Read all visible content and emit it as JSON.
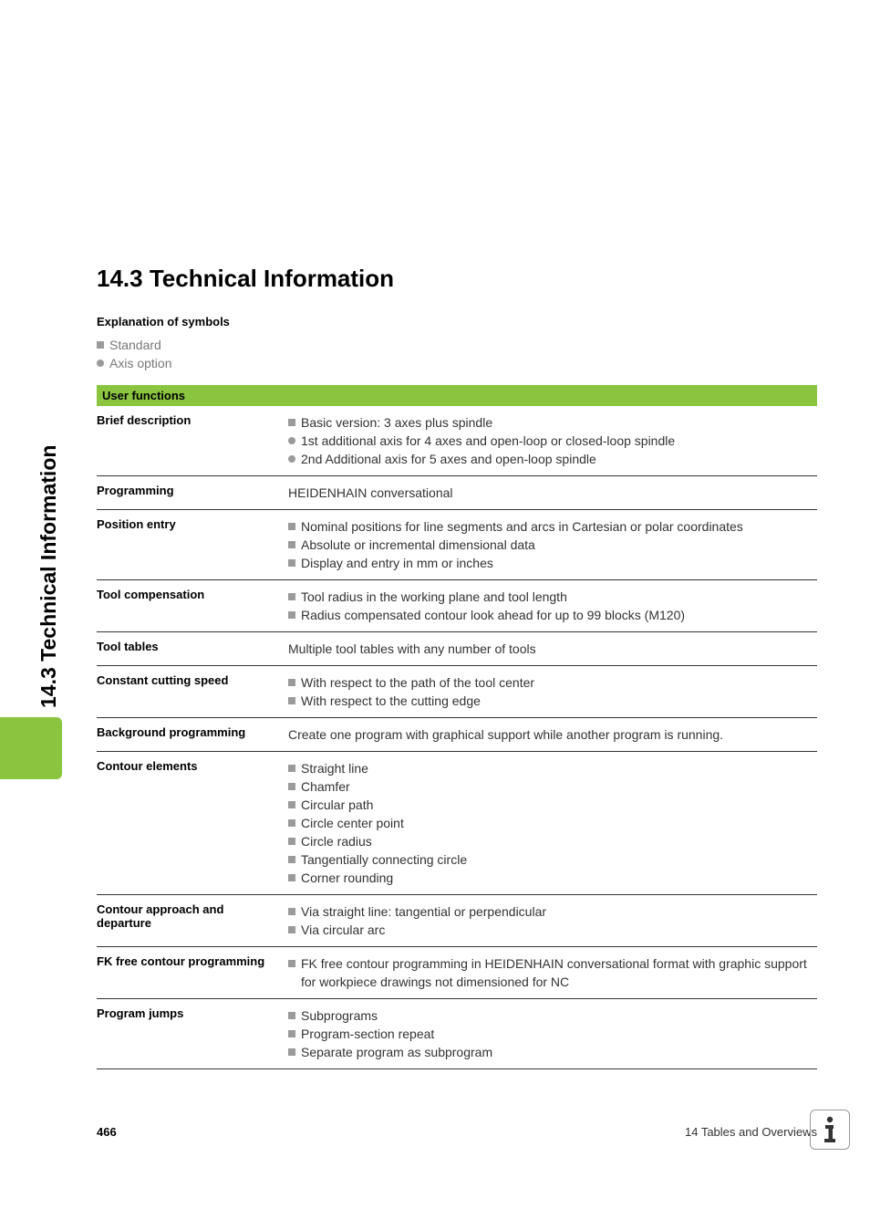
{
  "colors": {
    "accent_green": "#8bc53f",
    "text_primary": "#000000",
    "text_body": "#333333",
    "text_muted": "#777777",
    "border": "#333333",
    "bullet_gray": "#9a9a9a",
    "background": "#ffffff"
  },
  "side_tab": {
    "label": "14.3 Technical Information"
  },
  "section": {
    "title": "14.3 Technical Information",
    "explanation_heading": "Explanation of symbols",
    "symbols": [
      {
        "marker": "square",
        "label": "Standard",
        "color": "#9a9a9a"
      },
      {
        "marker": "circle",
        "label": "Axis option",
        "color": "#9a9a9a"
      }
    ]
  },
  "table": {
    "header": "User functions",
    "rows": [
      {
        "label": "Brief description",
        "items": [
          {
            "marker": "square",
            "color": "#9a9a9a",
            "text": "Basic version: 3 axes plus spindle"
          },
          {
            "marker": "circle",
            "color": "#9a9a9a",
            "text": "1st additional axis for 4 axes and open-loop or closed-loop spindle"
          },
          {
            "marker": "circle",
            "color": "#9a9a9a",
            "text": "2nd Additional axis for 5 axes and open-loop spindle"
          }
        ]
      },
      {
        "label": "Programming",
        "plain": "HEIDENHAIN conversational"
      },
      {
        "label": "Position entry",
        "items": [
          {
            "marker": "square",
            "color": "#9a9a9a",
            "text": "Nominal positions for line segments and arcs in Cartesian or polar coordinates"
          },
          {
            "marker": "square",
            "color": "#9a9a9a",
            "text": "Absolute or incremental dimensional data"
          },
          {
            "marker": "square",
            "color": "#9a9a9a",
            "text": "Display and entry in mm or inches"
          }
        ]
      },
      {
        "label": "Tool compensation",
        "items": [
          {
            "marker": "square",
            "color": "#9a9a9a",
            "text": "Tool radius in the working plane and tool length"
          },
          {
            "marker": "square",
            "color": "#9a9a9a",
            "text": "Radius compensated contour look ahead for up to 99 blocks (M120)"
          }
        ]
      },
      {
        "label": "Tool tables",
        "plain": "Multiple tool tables with any number of tools"
      },
      {
        "label": "Constant cutting speed",
        "items": [
          {
            "marker": "square",
            "color": "#9a9a9a",
            "text": "With respect to the path of the tool center"
          },
          {
            "marker": "square",
            "color": "#9a9a9a",
            "text": "With respect to the cutting edge"
          }
        ]
      },
      {
        "label": "Background programming",
        "plain": "Create one program with graphical support while another program is running."
      },
      {
        "label": "Contour elements",
        "items": [
          {
            "marker": "square",
            "color": "#9a9a9a",
            "text": "Straight line"
          },
          {
            "marker": "square",
            "color": "#9a9a9a",
            "text": "Chamfer"
          },
          {
            "marker": "square",
            "color": "#9a9a9a",
            "text": "Circular path"
          },
          {
            "marker": "square",
            "color": "#9a9a9a",
            "text": "Circle center point"
          },
          {
            "marker": "square",
            "color": "#9a9a9a",
            "text": "Circle radius"
          },
          {
            "marker": "square",
            "color": "#9a9a9a",
            "text": "Tangentially connecting circle"
          },
          {
            "marker": "square",
            "color": "#9a9a9a",
            "text": "Corner rounding"
          }
        ]
      },
      {
        "label": "Contour approach and departure",
        "items": [
          {
            "marker": "square",
            "color": "#9a9a9a",
            "text": "Via straight line: tangential or perpendicular"
          },
          {
            "marker": "square",
            "color": "#9a9a9a",
            "text": "Via circular arc"
          }
        ]
      },
      {
        "label": "FK free contour programming",
        "items": [
          {
            "marker": "square",
            "color": "#9a9a9a",
            "text": "FK free contour programming in HEIDENHAIN conversational format with graphic support for workpiece drawings not dimensioned for NC"
          }
        ]
      },
      {
        "label": "Program jumps",
        "items": [
          {
            "marker": "square",
            "color": "#9a9a9a",
            "text": "Subprograms"
          },
          {
            "marker": "square",
            "color": "#9a9a9a",
            "text": "Program-section repeat"
          },
          {
            "marker": "square",
            "color": "#9a9a9a",
            "text": "Separate program as subprogram"
          }
        ]
      }
    ]
  },
  "footer": {
    "page_number": "466",
    "chapter": "14 Tables and Overviews"
  }
}
